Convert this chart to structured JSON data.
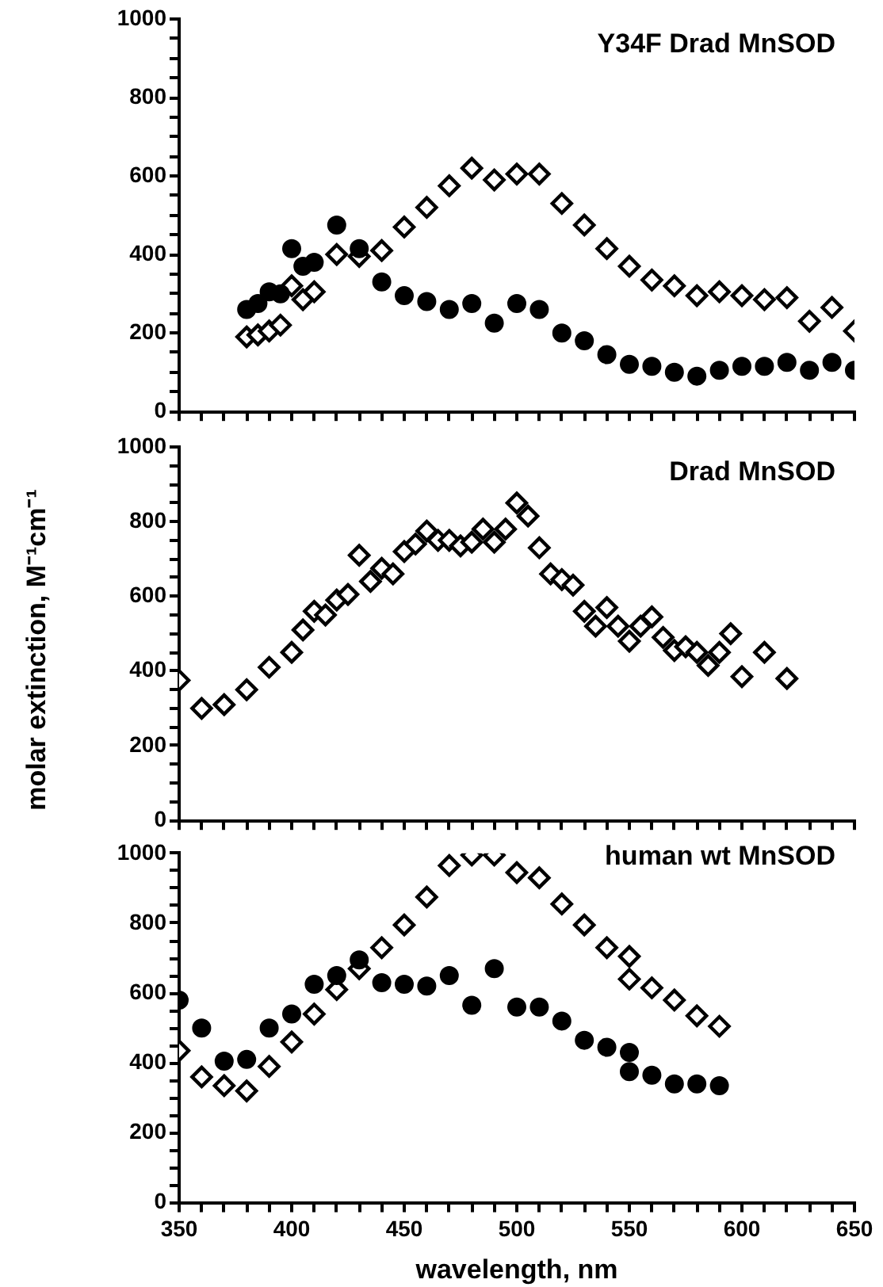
{
  "chart_data": [
    {
      "type": "scatter",
      "title": "Y34F Drad MnSOD",
      "tick_labels": "y",
      "grid": false,
      "legend": false,
      "xlim": [
        350,
        650
      ],
      "ylim": [
        0,
        1000
      ],
      "xticks": [
        350,
        {
          "value": 360,
          "label": null
        },
        {
          "value": 370,
          "label": null
        },
        {
          "value": 380,
          "label": null
        },
        {
          "value": 390,
          "label": null
        },
        400,
        {
          "value": 410,
          "label": null
        },
        {
          "value": 420,
          "label": null
        },
        {
          "value": 430,
          "label": null
        },
        {
          "value": 440,
          "label": null
        },
        450,
        {
          "value": 460,
          "label": null
        },
        {
          "value": 470,
          "label": null
        },
        {
          "value": 480,
          "label": null
        },
        {
          "value": 490,
          "label": null
        },
        500,
        {
          "value": 510,
          "label": null
        },
        {
          "value": 520,
          "label": null
        },
        {
          "value": 530,
          "label": null
        },
        {
          "value": 540,
          "label": null
        },
        550,
        {
          "value": 560,
          "label": null
        },
        {
          "value": 570,
          "label": null
        },
        {
          "value": 580,
          "label": null
        },
        {
          "value": 590,
          "label": null
        },
        600,
        {
          "value": 610,
          "label": null
        },
        {
          "value": 620,
          "label": null
        },
        {
          "value": 630,
          "label": null
        },
        {
          "value": 640,
          "label": null
        },
        650
      ],
      "yticks": [
        0,
        {
          "value": 50,
          "label": null
        },
        {
          "value": 100,
          "label": null
        },
        {
          "value": 150,
          "label": null
        },
        200,
        {
          "value": 250,
          "label": null
        },
        {
          "value": 300,
          "label": null
        },
        {
          "value": 350,
          "label": null
        },
        400,
        {
          "value": 450,
          "label": null
        },
        {
          "value": 500,
          "label": null
        },
        {
          "value": 550,
          "label": null
        },
        600,
        {
          "value": 650,
          "label": null
        },
        {
          "value": 700,
          "label": null
        },
        {
          "value": 750,
          "label": null
        },
        800,
        {
          "value": 850,
          "label": null
        },
        {
          "value": 900,
          "label": null
        },
        {
          "value": 950,
          "label": null
        },
        1000
      ],
      "series": [
        {
          "color": "#000000",
          "marker": "circle",
          "x": [
            380,
            385,
            390,
            395,
            400,
            405,
            410,
            420,
            430,
            440,
            450,
            460,
            470,
            480,
            490,
            500,
            510,
            520,
            530,
            540,
            550,
            560,
            570,
            580,
            590,
            600,
            610,
            620,
            630,
            640,
            650
          ],
          "values": [
            260,
            275,
            305,
            300,
            415,
            370,
            380,
            475,
            415,
            330,
            295,
            280,
            260,
            275,
            225,
            275,
            260,
            200,
            180,
            145,
            120,
            115,
            100,
            90,
            105,
            115,
            115,
            125,
            105,
            125,
            105
          ]
        },
        {
          "color": "#000000",
          "marker": "diamond",
          "x": [
            380,
            385,
            390,
            395,
            400,
            405,
            410,
            420,
            430,
            440,
            450,
            460,
            470,
            480,
            490,
            500,
            510,
            520,
            530,
            540,
            550,
            560,
            570,
            580,
            590,
            600,
            610,
            620,
            630,
            640,
            650
          ],
          "values": [
            190,
            195,
            205,
            220,
            320,
            285,
            305,
            400,
            395,
            410,
            470,
            520,
            575,
            620,
            590,
            605,
            605,
            530,
            475,
            415,
            370,
            335,
            320,
            295,
            305,
            295,
            285,
            290,
            230,
            265,
            205
          ]
        }
      ]
    },
    {
      "type": "scatter",
      "title": "Drad MnSOD",
      "ylabel": "molar extinction, M⁻¹cm⁻¹",
      "tick_labels": "y",
      "grid": false,
      "legend": false,
      "xlim": [
        350,
        650
      ],
      "ylim": [
        0,
        1000
      ],
      "xticks": [
        350,
        {
          "value": 360,
          "label": null
        },
        {
          "value": 370,
          "label": null
        },
        {
          "value": 380,
          "label": null
        },
        {
          "value": 390,
          "label": null
        },
        400,
        {
          "value": 410,
          "label": null
        },
        {
          "value": 420,
          "label": null
        },
        {
          "value": 430,
          "label": null
        },
        {
          "value": 440,
          "label": null
        },
        450,
        {
          "value": 460,
          "label": null
        },
        {
          "value": 470,
          "label": null
        },
        {
          "value": 480,
          "label": null
        },
        {
          "value": 490,
          "label": null
        },
        500,
        {
          "value": 510,
          "label": null
        },
        {
          "value": 520,
          "label": null
        },
        {
          "value": 530,
          "label": null
        },
        {
          "value": 540,
          "label": null
        },
        550,
        {
          "value": 560,
          "label": null
        },
        {
          "value": 570,
          "label": null
        },
        {
          "value": 580,
          "label": null
        },
        {
          "value": 590,
          "label": null
        },
        600,
        {
          "value": 610,
          "label": null
        },
        {
          "value": 620,
          "label": null
        },
        {
          "value": 630,
          "label": null
        },
        {
          "value": 640,
          "label": null
        },
        650
      ],
      "yticks": [
        0,
        {
          "value": 50,
          "label": null
        },
        {
          "value": 100,
          "label": null
        },
        {
          "value": 150,
          "label": null
        },
        200,
        {
          "value": 250,
          "label": null
        },
        {
          "value": 300,
          "label": null
        },
        {
          "value": 350,
          "label": null
        },
        400,
        {
          "value": 450,
          "label": null
        },
        {
          "value": 500,
          "label": null
        },
        {
          "value": 550,
          "label": null
        },
        600,
        {
          "value": 650,
          "label": null
        },
        {
          "value": 700,
          "label": null
        },
        {
          "value": 750,
          "label": null
        },
        800,
        {
          "value": 850,
          "label": null
        },
        {
          "value": 900,
          "label": null
        },
        {
          "value": 950,
          "label": null
        },
        1000
      ],
      "series": [
        {
          "color": "#000000",
          "marker": "diamond",
          "x": [
            350,
            360,
            370,
            380,
            390,
            400,
            405,
            410,
            415,
            420,
            425,
            430,
            435,
            440,
            445,
            450,
            455,
            460,
            465,
            470,
            475,
            480,
            485,
            490,
            495,
            500,
            505,
            510,
            515,
            520,
            525,
            530,
            535,
            540,
            545,
            550,
            555,
            560,
            565,
            570,
            575,
            580,
            585,
            590,
            595,
            600,
            610,
            620
          ],
          "values": [
            375,
            300,
            310,
            350,
            410,
            450,
            510,
            560,
            550,
            590,
            605,
            710,
            640,
            675,
            660,
            720,
            740,
            775,
            750,
            750,
            735,
            745,
            780,
            745,
            780,
            850,
            815,
            730,
            660,
            645,
            630,
            560,
            520,
            570,
            520,
            480,
            520,
            545,
            490,
            455,
            465,
            450,
            415,
            450,
            500,
            385,
            450,
            380
          ]
        }
      ]
    },
    {
      "type": "scatter",
      "title": "human wt MnSOD",
      "xlabel": "wavelength, nm",
      "grid": false,
      "legend": false,
      "xlim": [
        350,
        650
      ],
      "ylim": [
        0,
        1000
      ],
      "xticks": [
        350,
        {
          "value": 360,
          "label": null
        },
        {
          "value": 370,
          "label": null
        },
        {
          "value": 380,
          "label": null
        },
        {
          "value": 390,
          "label": null
        },
        400,
        {
          "value": 410,
          "label": null
        },
        {
          "value": 420,
          "label": null
        },
        {
          "value": 430,
          "label": null
        },
        {
          "value": 440,
          "label": null
        },
        450,
        {
          "value": 460,
          "label": null
        },
        {
          "value": 470,
          "label": null
        },
        {
          "value": 480,
          "label": null
        },
        {
          "value": 490,
          "label": null
        },
        500,
        {
          "value": 510,
          "label": null
        },
        {
          "value": 520,
          "label": null
        },
        {
          "value": 530,
          "label": null
        },
        {
          "value": 540,
          "label": null
        },
        550,
        {
          "value": 560,
          "label": null
        },
        {
          "value": 570,
          "label": null
        },
        {
          "value": 580,
          "label": null
        },
        {
          "value": 590,
          "label": null
        },
        600,
        {
          "value": 610,
          "label": null
        },
        {
          "value": 620,
          "label": null
        },
        {
          "value": 630,
          "label": null
        },
        {
          "value": 640,
          "label": null
        },
        650
      ],
      "yticks": [
        0,
        {
          "value": 50,
          "label": null
        },
        {
          "value": 100,
          "label": null
        },
        {
          "value": 150,
          "label": null
        },
        200,
        {
          "value": 250,
          "label": null
        },
        {
          "value": 300,
          "label": null
        },
        {
          "value": 350,
          "label": null
        },
        400,
        {
          "value": 450,
          "label": null
        },
        {
          "value": 500,
          "label": null
        },
        {
          "value": 550,
          "label": null
        },
        600,
        {
          "value": 650,
          "label": null
        },
        {
          "value": 700,
          "label": null
        },
        {
          "value": 750,
          "label": null
        },
        800,
        {
          "value": 850,
          "label": null
        },
        {
          "value": 900,
          "label": null
        },
        {
          "value": 950,
          "label": null
        },
        1000
      ],
      "series": [
        {
          "color": "#000000",
          "marker": "circle",
          "x": [
            350,
            360,
            370,
            380,
            390,
            400,
            410,
            420,
            430,
            440,
            450,
            460,
            470,
            480,
            490,
            500,
            510,
            520,
            530,
            540,
            550,
            550,
            560,
            570,
            580,
            590
          ],
          "values": [
            580,
            500,
            405,
            410,
            500,
            540,
            625,
            650,
            695,
            630,
            625,
            620,
            650,
            565,
            670,
            560,
            560,
            520,
            465,
            445,
            430,
            375,
            365,
            340,
            340,
            335
          ]
        },
        {
          "color": "#000000",
          "marker": "diamond",
          "x": [
            350,
            360,
            370,
            380,
            390,
            400,
            410,
            420,
            430,
            440,
            450,
            460,
            470,
            480,
            490,
            500,
            510,
            520,
            530,
            540,
            550,
            550,
            560,
            570,
            580,
            590
          ],
          "values": [
            435,
            360,
            335,
            320,
            390,
            460,
            540,
            610,
            670,
            730,
            795,
            875,
            965,
            995,
            995,
            945,
            930,
            855,
            795,
            730,
            705,
            640,
            615,
            580,
            535,
            505
          ]
        }
      ]
    }
  ]
}
